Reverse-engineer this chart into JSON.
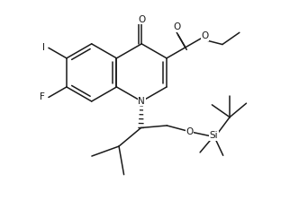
{
  "background": "#ffffff",
  "line_color": "#1a1a1a",
  "line_width": 1.1,
  "font_size": 7.5,
  "figsize": [
    3.22,
    2.33
  ],
  "dpi": 100,
  "xlim": [
    0,
    10
  ],
  "ylim": [
    0,
    7.22
  ]
}
